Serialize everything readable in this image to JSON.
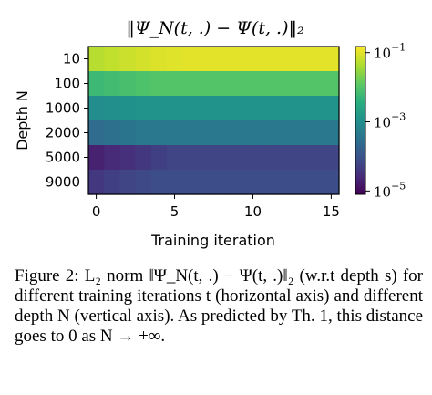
{
  "chart_data": {
    "type": "heatmap",
    "title": "‖Ψ_N(t, .) − Ψ(t, .)‖₂",
    "xlabel": "Training iteration",
    "ylabel": "Depth N",
    "x_ticks": [
      "0",
      "5",
      "10",
      "15"
    ],
    "x_range": [
      -0.5,
      15.5
    ],
    "y_categories": [
      "10",
      "100",
      "1000",
      "2000",
      "5000",
      "9000"
    ],
    "color_scale": "viridis",
    "log_scale": true,
    "colorbar_range": [
      8e-06,
      0.15
    ],
    "colorbar_ticks": [
      {
        "base": "10",
        "exp": "−1",
        "value": 0.1
      },
      {
        "base": "10",
        "exp": "−3",
        "value": 0.001
      },
      {
        "base": "10",
        "exp": "−5",
        "value": 1e-05
      }
    ],
    "x": [
      0,
      1,
      2,
      3,
      4,
      5,
      6,
      7,
      8,
      9,
      10,
      11,
      12,
      13,
      14,
      15
    ],
    "values": [
      [
        0.05,
        0.06,
        0.07,
        0.08,
        0.09,
        0.095,
        0.1,
        0.1,
        0.1,
        0.1,
        0.1,
        0.1,
        0.1,
        0.1,
        0.1,
        0.1
      ],
      [
        0.006,
        0.007,
        0.008,
        0.009,
        0.01,
        0.01,
        0.01,
        0.01,
        0.01,
        0.01,
        0.01,
        0.01,
        0.01,
        0.01,
        0.01,
        0.01
      ],
      [
        0.0009,
        0.001,
        0.0011,
        0.0012,
        0.0012,
        0.0012,
        0.0012,
        0.0012,
        0.0012,
        0.0012,
        0.0012,
        0.0012,
        0.0012,
        0.0012,
        0.0012,
        0.0012
      ],
      [
        0.00025,
        0.0003,
        0.00035,
        0.0004,
        0.0004,
        0.0004,
        0.0004,
        0.0004,
        0.0004,
        0.0004,
        0.0004,
        0.0004,
        0.0004,
        0.0004,
        0.0004,
        0.0004
      ],
      [
        2e-05,
        2.5e-05,
        3e-05,
        4e-05,
        5e-05,
        6e-05,
        6e-05,
        6e-05,
        6e-05,
        6e-05,
        6e-05,
        6e-05,
        6e-05,
        6e-05,
        6e-05,
        6e-05
      ],
      [
        4e-05,
        5e-05,
        6e-05,
        7e-05,
        8e-05,
        8e-05,
        8e-05,
        8e-05,
        8e-05,
        8e-05,
        8e-05,
        8e-05,
        8e-05,
        8e-05,
        8e-05,
        8e-05
      ]
    ]
  },
  "caption": {
    "label": "Figure 2:",
    "text": "L₂ norm ‖Ψ_N(t, .) − Ψ(t, .)‖₂ (w.r.t depth s) for different training iterations t (horizontal axis) and different depth N (vertical axis). As predicted by Th. 1, this distance goes to 0 as N → +∞."
  }
}
